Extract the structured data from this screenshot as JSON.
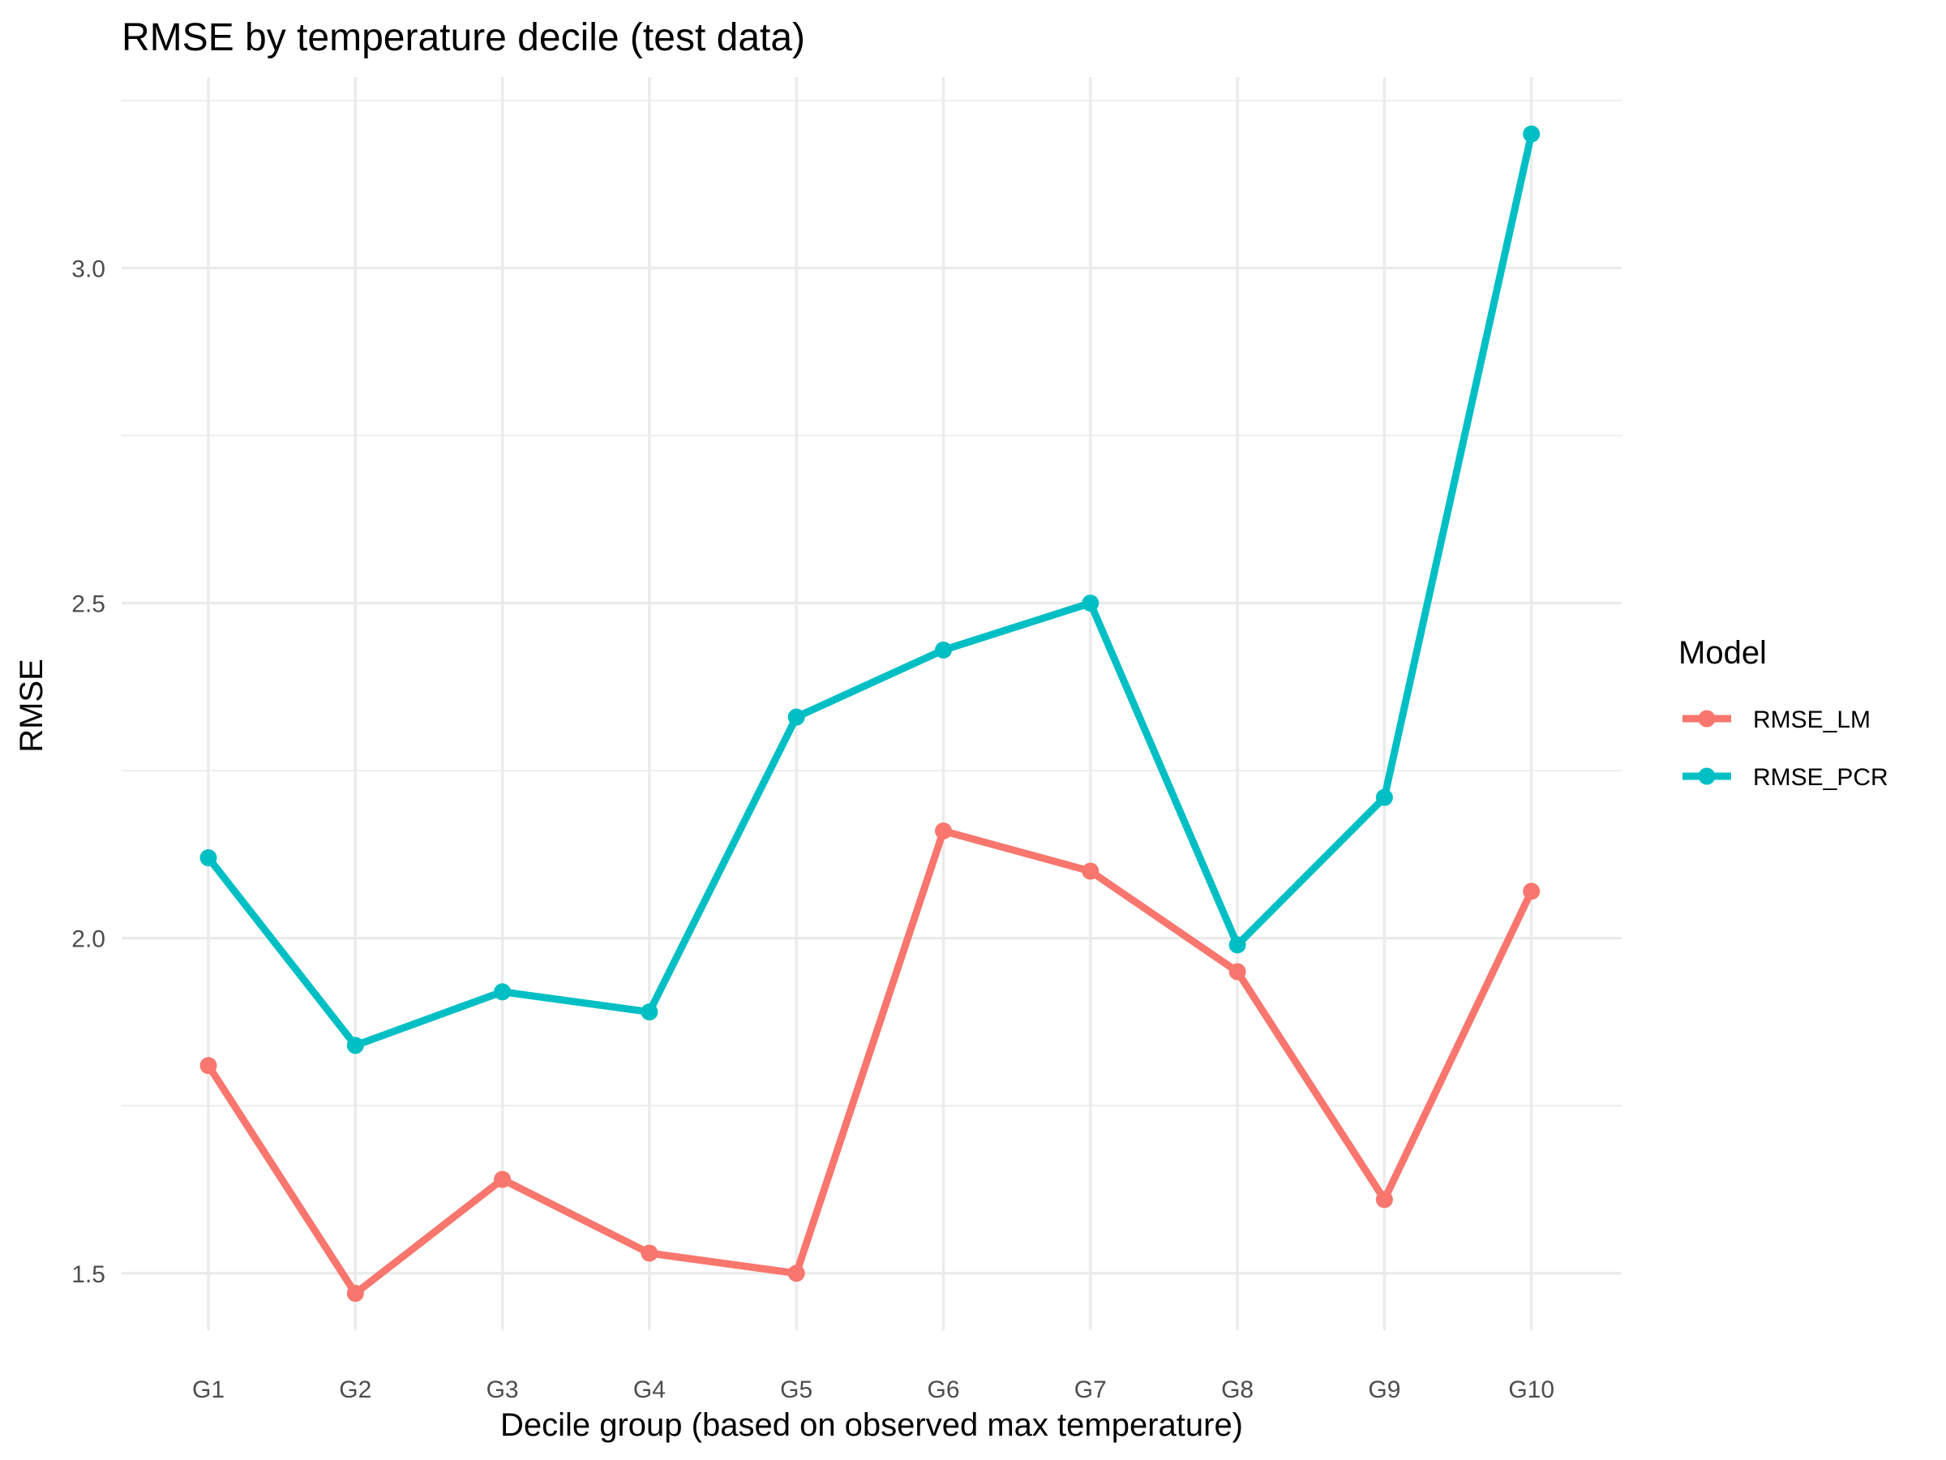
{
  "chart_data": {
    "type": "line",
    "title": "RMSE by temperature decile (test data)",
    "xlabel": "Decile group (based on observed max temperature)",
    "ylabel": "RMSE",
    "categories": [
      "G1",
      "G2",
      "G3",
      "G4",
      "G5",
      "G6",
      "G7",
      "G8",
      "G9",
      "G10"
    ],
    "ylim": [
      1.415,
      3.285
    ],
    "yticks": [
      1.5,
      2.0,
      2.5,
      3.0
    ],
    "ytick_labels": [
      "1.5",
      "2.0",
      "2.5",
      "3.0"
    ],
    "grid": true,
    "legend": {
      "title": "Model",
      "position": "right"
    },
    "series": [
      {
        "name": "RMSE_LM",
        "color": "#F8766D",
        "values": [
          1.81,
          1.47,
          1.64,
          1.53,
          1.5,
          2.16,
          2.1,
          1.95,
          1.61,
          2.07
        ]
      },
      {
        "name": "RMSE_PCR",
        "color": "#00BFC4",
        "values": [
          2.12,
          1.84,
          1.92,
          1.89,
          2.33,
          2.43,
          2.5,
          1.99,
          2.21,
          3.2
        ]
      }
    ]
  }
}
